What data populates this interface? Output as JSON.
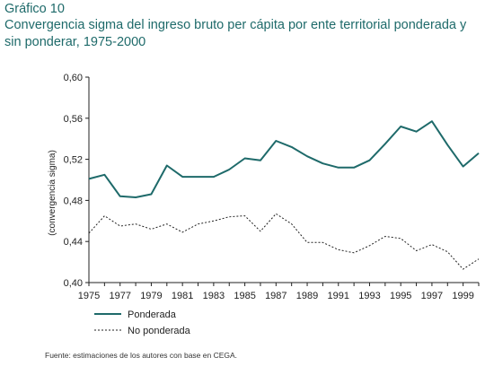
{
  "figure_label": "Gráfico 10",
  "figure_title": "Convergencia sigma del ingreso bruto per cápita por ente territorial ponderada y sin ponderar, 1975-2000",
  "source": "Fuente: estimaciones de los autores con base en CEGA.",
  "chart_data": {
    "type": "line",
    "title": "Convergencia sigma del ingreso bruto per cápita por ente territorial ponderada y sin ponderar, 1975-2000",
    "xlabel": "",
    "ylabel": "(convergencia sigma)",
    "xlim": [
      1975,
      2000
    ],
    "ylim": [
      0.4,
      0.6
    ],
    "x": [
      1975,
      1976,
      1977,
      1978,
      1979,
      1980,
      1981,
      1982,
      1983,
      1984,
      1985,
      1986,
      1987,
      1988,
      1989,
      1990,
      1991,
      1992,
      1993,
      1994,
      1995,
      1996,
      1997,
      1998,
      1999,
      2000
    ],
    "x_ticks": [
      "1975",
      "1977",
      "1979",
      "1981",
      "1983",
      "1985",
      "1987",
      "1989",
      "1991",
      "1993",
      "1995",
      "1997",
      "1999"
    ],
    "y_ticks": [
      "0,40",
      "0,44",
      "0,48",
      "0,52",
      "0,56",
      "0,60"
    ],
    "y_tick_values": [
      0.4,
      0.44,
      0.48,
      0.52,
      0.56,
      0.6
    ],
    "legend_position": "bottom-left",
    "series": [
      {
        "name": "Ponderada",
        "style": "solid",
        "color": "#1e6a6a",
        "values": [
          0.501,
          0.505,
          0.484,
          0.483,
          0.486,
          0.514,
          0.503,
          0.503,
          0.503,
          0.51,
          0.521,
          0.519,
          0.538,
          0.532,
          0.523,
          0.516,
          0.512,
          0.512,
          0.519,
          0.535,
          0.552,
          0.547,
          0.557,
          0.534,
          0.513,
          0.526
        ]
      },
      {
        "name": "No ponderada",
        "style": "dotted",
        "color": "#222222",
        "values": [
          0.448,
          0.465,
          0.455,
          0.457,
          0.452,
          0.457,
          0.449,
          0.457,
          0.46,
          0.464,
          0.465,
          0.45,
          0.467,
          0.457,
          0.439,
          0.439,
          0.432,
          0.429,
          0.436,
          0.445,
          0.443,
          0.431,
          0.437,
          0.43,
          0.413,
          0.423
        ]
      }
    ]
  }
}
